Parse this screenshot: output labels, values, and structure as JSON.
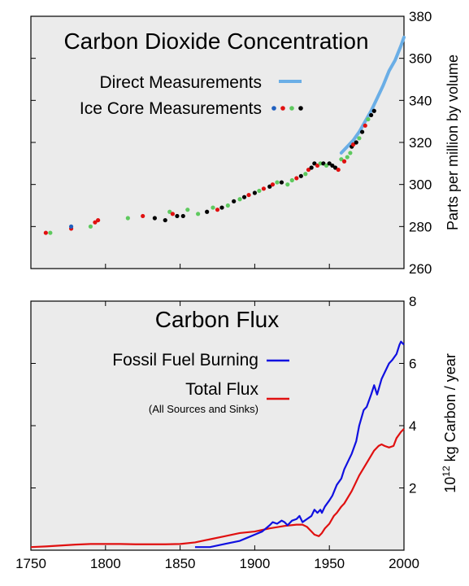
{
  "colors": {
    "direct": "#6aaee6",
    "ice_blue": "#1f5fbf",
    "ice_red": "#e01010",
    "ice_green": "#5ec95e",
    "ice_black": "#000000",
    "fossil": "#1010e0",
    "total": "#e01010",
    "panel_bg": "#ebebeb"
  },
  "chart_data": [
    {
      "type": "scatter",
      "title": "Carbon Dioxide Concentration",
      "ylabel": "Parts per million by volume",
      "xlim": [
        1750,
        2000
      ],
      "ylim": [
        260,
        380
      ],
      "yticks": [
        "260",
        "280",
        "300",
        "320",
        "340",
        "360",
        "380"
      ],
      "legend": [
        {
          "label": "Direct Measurements",
          "marker": "line",
          "color": "#6aaee6"
        },
        {
          "label": "Ice Core Measurements",
          "marker": "dots",
          "colors": [
            "#1f5fbf",
            "#e01010",
            "#5ec95e",
            "#000000"
          ]
        }
      ],
      "series": [
        {
          "name": "Direct Measurements",
          "x": [
            1958,
            1962,
            1966,
            1970,
            1974,
            1978,
            1982,
            1986,
            1990,
            1994,
            1998,
            2000
          ],
          "y": [
            315,
            318,
            321,
            325,
            330,
            335,
            341,
            347,
            354,
            359,
            366,
            370
          ]
        },
        {
          "name": "Ice Core Measurements",
          "points": [
            {
              "x": 1760,
              "y": 277,
              "c": "red"
            },
            {
              "x": 1763,
              "y": 277,
              "c": "green"
            },
            {
              "x": 1777,
              "y": 279,
              "c": "red"
            },
            {
              "x": 1777,
              "y": 280,
              "c": "blue"
            },
            {
              "x": 1790,
              "y": 280,
              "c": "green"
            },
            {
              "x": 1793,
              "y": 282,
              "c": "red"
            },
            {
              "x": 1795,
              "y": 283,
              "c": "red"
            },
            {
              "x": 1815,
              "y": 284,
              "c": "green"
            },
            {
              "x": 1825,
              "y": 285,
              "c": "red"
            },
            {
              "x": 1833,
              "y": 284,
              "c": "black"
            },
            {
              "x": 1840,
              "y": 283,
              "c": "black"
            },
            {
              "x": 1843,
              "y": 287,
              "c": "green"
            },
            {
              "x": 1845,
              "y": 286,
              "c": "red"
            },
            {
              "x": 1848,
              "y": 285,
              "c": "black"
            },
            {
              "x": 1852,
              "y": 285,
              "c": "black"
            },
            {
              "x": 1855,
              "y": 288,
              "c": "green"
            },
            {
              "x": 1862,
              "y": 286,
              "c": "green"
            },
            {
              "x": 1868,
              "y": 287,
              "c": "black"
            },
            {
              "x": 1872,
              "y": 289,
              "c": "green"
            },
            {
              "x": 1875,
              "y": 288,
              "c": "red"
            },
            {
              "x": 1878,
              "y": 289,
              "c": "black"
            },
            {
              "x": 1882,
              "y": 290,
              "c": "green"
            },
            {
              "x": 1886,
              "y": 292,
              "c": "black"
            },
            {
              "x": 1890,
              "y": 293,
              "c": "green"
            },
            {
              "x": 1893,
              "y": 294,
              "c": "black"
            },
            {
              "x": 1896,
              "y": 295,
              "c": "red"
            },
            {
              "x": 1900,
              "y": 296,
              "c": "black"
            },
            {
              "x": 1903,
              "y": 297,
              "c": "green"
            },
            {
              "x": 1906,
              "y": 298,
              "c": "red"
            },
            {
              "x": 1910,
              "y": 299,
              "c": "black"
            },
            {
              "x": 1912,
              "y": 300,
              "c": "red"
            },
            {
              "x": 1915,
              "y": 301,
              "c": "green"
            },
            {
              "x": 1918,
              "y": 301,
              "c": "black"
            },
            {
              "x": 1922,
              "y": 300,
              "c": "green"
            },
            {
              "x": 1925,
              "y": 302,
              "c": "green"
            },
            {
              "x": 1928,
              "y": 303,
              "c": "red"
            },
            {
              "x": 1931,
              "y": 304,
              "c": "black"
            },
            {
              "x": 1934,
              "y": 305,
              "c": "green"
            },
            {
              "x": 1936,
              "y": 307,
              "c": "red"
            },
            {
              "x": 1938,
              "y": 308,
              "c": "black"
            },
            {
              "x": 1940,
              "y": 310,
              "c": "black"
            },
            {
              "x": 1942,
              "y": 309,
              "c": "red"
            },
            {
              "x": 1944,
              "y": 310,
              "c": "green"
            },
            {
              "x": 1946,
              "y": 310,
              "c": "black"
            },
            {
              "x": 1948,
              "y": 309,
              "c": "green"
            },
            {
              "x": 1950,
              "y": 310,
              "c": "black"
            },
            {
              "x": 1952,
              "y": 309,
              "c": "black"
            },
            {
              "x": 1954,
              "y": 308,
              "c": "black"
            },
            {
              "x": 1956,
              "y": 307,
              "c": "red"
            },
            {
              "x": 1958,
              "y": 312,
              "c": "green"
            },
            {
              "x": 1960,
              "y": 311,
              "c": "red"
            },
            {
              "x": 1962,
              "y": 313,
              "c": "green"
            },
            {
              "x": 1964,
              "y": 315,
              "c": "green"
            },
            {
              "x": 1965,
              "y": 318,
              "c": "black"
            },
            {
              "x": 1966,
              "y": 319,
              "c": "red"
            },
            {
              "x": 1968,
              "y": 320,
              "c": "black"
            },
            {
              "x": 1970,
              "y": 322,
              "c": "green"
            },
            {
              "x": 1972,
              "y": 325,
              "c": "black"
            },
            {
              "x": 1974,
              "y": 328,
              "c": "red"
            },
            {
              "x": 1976,
              "y": 331,
              "c": "green"
            },
            {
              "x": 1978,
              "y": 333,
              "c": "black"
            },
            {
              "x": 1980,
              "y": 335,
              "c": "black"
            }
          ]
        }
      ]
    },
    {
      "type": "line",
      "title": "Carbon Flux",
      "ylabel_base": "10",
      "ylabel_exp": "12",
      "ylabel_rest": " kg Carbon / year",
      "xlim": [
        1750,
        2000
      ],
      "ylim": [
        0,
        8
      ],
      "xticks": [
        "1750",
        "1800",
        "1850",
        "1900",
        "1950",
        "2000"
      ],
      "yticks": [
        "2",
        "4",
        "6",
        "8"
      ],
      "legend": [
        {
          "label": "Fossil Fuel Burning",
          "color": "#1010e0"
        },
        {
          "label": "Total Flux",
          "sublabel": "(All Sources and Sinks)",
          "color": "#e01010"
        }
      ],
      "series": [
        {
          "name": "Fossil Fuel Burning",
          "x": [
            1860,
            1870,
            1880,
            1890,
            1895,
            1900,
            1905,
            1910,
            1912,
            1915,
            1918,
            1920,
            1922,
            1925,
            1928,
            1930,
            1932,
            1935,
            1938,
            1940,
            1942,
            1944,
            1945,
            1947,
            1950,
            1952,
            1955,
            1958,
            1960,
            1963,
            1965,
            1968,
            1970,
            1973,
            1975,
            1978,
            1980,
            1982,
            1985,
            1988,
            1990,
            1992,
            1995,
            1997,
            1998,
            2000
          ],
          "y": [
            0.1,
            0.1,
            0.2,
            0.3,
            0.4,
            0.5,
            0.6,
            0.8,
            0.9,
            0.85,
            0.95,
            0.9,
            0.8,
            0.95,
            1.0,
            1.1,
            0.9,
            1.0,
            1.1,
            1.3,
            1.2,
            1.3,
            1.2,
            1.4,
            1.6,
            1.75,
            2.1,
            2.3,
            2.6,
            2.9,
            3.1,
            3.5,
            4.0,
            4.5,
            4.6,
            5.0,
            5.3,
            5.0,
            5.5,
            5.8,
            6.0,
            6.1,
            6.3,
            6.6,
            6.7,
            6.6
          ]
        },
        {
          "name": "Total Flux",
          "x": [
            1750,
            1760,
            1770,
            1780,
            1790,
            1800,
            1810,
            1820,
            1830,
            1840,
            1850,
            1860,
            1870,
            1880,
            1890,
            1900,
            1905,
            1910,
            1920,
            1928,
            1932,
            1935,
            1938,
            1940,
            1943,
            1945,
            1947,
            1950,
            1953,
            1955,
            1958,
            1960,
            1965,
            1970,
            1975,
            1980,
            1983,
            1985,
            1987,
            1990,
            1993,
            1995,
            1998,
            2000
          ],
          "y": [
            0.1,
            0.12,
            0.15,
            0.18,
            0.2,
            0.2,
            0.2,
            0.19,
            0.19,
            0.19,
            0.2,
            0.25,
            0.35,
            0.45,
            0.55,
            0.6,
            0.65,
            0.7,
            0.78,
            0.82,
            0.82,
            0.75,
            0.6,
            0.5,
            0.45,
            0.55,
            0.7,
            0.85,
            1.1,
            1.2,
            1.4,
            1.5,
            1.9,
            2.4,
            2.8,
            3.2,
            3.35,
            3.4,
            3.35,
            3.3,
            3.35,
            3.6,
            3.8,
            3.9
          ]
        }
      ]
    }
  ]
}
